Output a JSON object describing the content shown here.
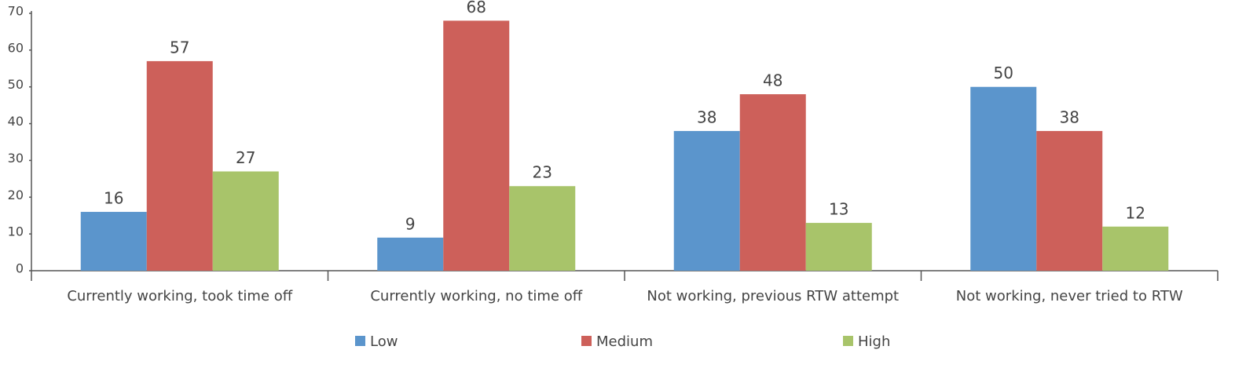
{
  "chart_data": {
    "type": "bar",
    "categories": [
      "Currently working, took time off",
      "Currently working, no time off",
      "Not working, previous RTW attempt",
      "Not working, never tried to RTW"
    ],
    "series": [
      {
        "name": "Low",
        "color": "#5b95cc",
        "values": [
          16,
          9,
          38,
          50
        ]
      },
      {
        "name": "Medium",
        "color": "#cd605a",
        "values": [
          57,
          68,
          48,
          38
        ]
      },
      {
        "name": "High",
        "color": "#a8c46a",
        "values": [
          27,
          23,
          13,
          12
        ]
      }
    ],
    "ylim": [
      0,
      70
    ],
    "yticks": [
      0,
      10,
      20,
      30,
      40,
      50,
      60,
      70
    ],
    "grid": false,
    "legend": "bottom"
  }
}
